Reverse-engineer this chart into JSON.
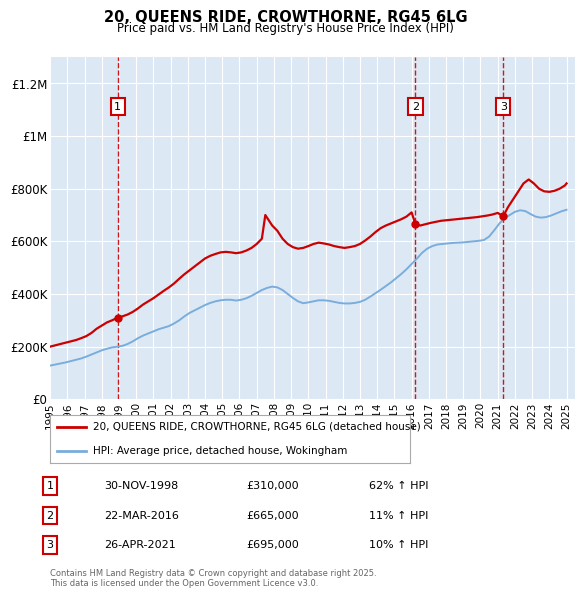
{
  "title_line1": "20, QUEENS RIDE, CROWTHORNE, RG45 6LG",
  "title_line2": "Price paid vs. HM Land Registry's House Price Index (HPI)",
  "plot_bg_color": "#dce9f5",
  "ylim": [
    0,
    1300000
  ],
  "yticks": [
    0,
    200000,
    400000,
    600000,
    800000,
    1000000,
    1200000
  ],
  "ytick_labels": [
    "£0",
    "£200K",
    "£400K",
    "£600K",
    "£800K",
    "£1M",
    "£1.2M"
  ],
  "xmin": 1995.0,
  "xmax": 2025.5,
  "sale_dates_num": [
    1998.92,
    2016.22,
    2021.32
  ],
  "sale_prices": [
    310000,
    665000,
    695000
  ],
  "sale_labels": [
    "1",
    "2",
    "3"
  ],
  "sale_label_dates": [
    "30-NOV-1998",
    "22-MAR-2016",
    "26-APR-2021"
  ],
  "sale_label_prices": [
    "£310,000",
    "£665,000",
    "£695,000"
  ],
  "sale_label_hpi": [
    "62% ↑ HPI",
    "11% ↑ HPI",
    "10% ↑ HPI"
  ],
  "red_line_color": "#cc0000",
  "blue_line_color": "#7aaddc",
  "hpi_x": [
    1995.0,
    1995.3,
    1995.6,
    1995.9,
    1996.2,
    1996.5,
    1996.8,
    1997.1,
    1997.4,
    1997.7,
    1998.0,
    1998.3,
    1998.6,
    1998.9,
    1999.2,
    1999.5,
    1999.8,
    2000.1,
    2000.4,
    2000.7,
    2001.0,
    2001.3,
    2001.6,
    2001.9,
    2002.2,
    2002.5,
    2002.8,
    2003.1,
    2003.4,
    2003.7,
    2004.0,
    2004.3,
    2004.6,
    2004.9,
    2005.2,
    2005.5,
    2005.8,
    2006.1,
    2006.4,
    2006.7,
    2007.0,
    2007.3,
    2007.6,
    2007.9,
    2008.2,
    2008.5,
    2008.8,
    2009.1,
    2009.4,
    2009.7,
    2010.0,
    2010.3,
    2010.6,
    2010.9,
    2011.2,
    2011.5,
    2011.8,
    2012.1,
    2012.4,
    2012.7,
    2013.0,
    2013.3,
    2013.6,
    2013.9,
    2014.2,
    2014.5,
    2014.8,
    2015.1,
    2015.4,
    2015.7,
    2016.0,
    2016.3,
    2016.6,
    2016.9,
    2017.2,
    2017.5,
    2017.8,
    2018.1,
    2018.4,
    2018.7,
    2019.0,
    2019.3,
    2019.6,
    2019.9,
    2020.2,
    2020.5,
    2020.8,
    2021.1,
    2021.4,
    2021.7,
    2022.0,
    2022.3,
    2022.6,
    2022.9,
    2023.2,
    2023.5,
    2023.8,
    2024.1,
    2024.4,
    2024.7,
    2025.0
  ],
  "hpi_y": [
    128000,
    132000,
    136000,
    140000,
    145000,
    150000,
    155000,
    162000,
    170000,
    178000,
    186000,
    192000,
    197000,
    200000,
    203000,
    210000,
    220000,
    232000,
    242000,
    250000,
    258000,
    266000,
    272000,
    278000,
    288000,
    300000,
    315000,
    328000,
    338000,
    348000,
    358000,
    366000,
    372000,
    376000,
    378000,
    378000,
    375000,
    378000,
    384000,
    393000,
    404000,
    415000,
    423000,
    428000,
    425000,
    415000,
    400000,
    385000,
    372000,
    365000,
    368000,
    372000,
    376000,
    376000,
    374000,
    370000,
    366000,
    364000,
    364000,
    366000,
    370000,
    378000,
    390000,
    403000,
    416000,
    430000,
    444000,
    460000,
    476000,
    494000,
    514000,
    534000,
    556000,
    572000,
    582000,
    588000,
    590000,
    592000,
    594000,
    595000,
    596000,
    598000,
    600000,
    602000,
    605000,
    618000,
    642000,
    668000,
    688000,
    700000,
    712000,
    718000,
    715000,
    704000,
    694000,
    690000,
    692000,
    698000,
    706000,
    714000,
    720000
  ],
  "price_x": [
    1995.0,
    1995.3,
    1995.6,
    1995.9,
    1996.2,
    1996.5,
    1996.8,
    1997.1,
    1997.4,
    1997.7,
    1998.0,
    1998.3,
    1998.6,
    1998.92,
    1999.2,
    1999.5,
    1999.8,
    2000.1,
    2000.4,
    2000.7,
    2001.0,
    2001.3,
    2001.6,
    2001.9,
    2002.2,
    2002.5,
    2002.8,
    2003.1,
    2003.4,
    2003.7,
    2004.0,
    2004.3,
    2004.6,
    2004.9,
    2005.2,
    2005.5,
    2005.8,
    2006.1,
    2006.4,
    2006.7,
    2007.0,
    2007.3,
    2007.5,
    2007.7,
    2007.9,
    2008.2,
    2008.5,
    2008.8,
    2009.1,
    2009.4,
    2009.7,
    2010.0,
    2010.3,
    2010.6,
    2010.9,
    2011.2,
    2011.5,
    2011.8,
    2012.1,
    2012.4,
    2012.7,
    2013.0,
    2013.3,
    2013.6,
    2013.9,
    2014.2,
    2014.5,
    2014.8,
    2015.1,
    2015.4,
    2015.7,
    2016.0,
    2016.22,
    2016.5,
    2016.8,
    2017.1,
    2017.4,
    2017.7,
    2018.0,
    2018.3,
    2018.6,
    2018.9,
    2019.2,
    2019.5,
    2019.8,
    2020.1,
    2020.4,
    2020.7,
    2021.0,
    2021.32,
    2021.6,
    2021.9,
    2022.2,
    2022.5,
    2022.8,
    2023.1,
    2023.4,
    2023.7,
    2024.0,
    2024.3,
    2024.6,
    2024.9,
    2025.0
  ],
  "price_y": [
    200000,
    205000,
    210000,
    215000,
    220000,
    225000,
    232000,
    240000,
    252000,
    268000,
    280000,
    292000,
    300000,
    310000,
    315000,
    322000,
    332000,
    345000,
    360000,
    372000,
    384000,
    398000,
    412000,
    425000,
    440000,
    458000,
    475000,
    490000,
    505000,
    520000,
    535000,
    545000,
    552000,
    558000,
    560000,
    558000,
    555000,
    558000,
    565000,
    575000,
    590000,
    610000,
    700000,
    680000,
    660000,
    640000,
    610000,
    590000,
    578000,
    572000,
    575000,
    582000,
    590000,
    595000,
    592000,
    588000,
    582000,
    578000,
    575000,
    578000,
    582000,
    590000,
    603000,
    618000,
    635000,
    650000,
    660000,
    668000,
    676000,
    684000,
    694000,
    710000,
    665000,
    660000,
    665000,
    670000,
    674000,
    678000,
    680000,
    682000,
    684000,
    686000,
    688000,
    690000,
    692000,
    695000,
    698000,
    702000,
    708000,
    695000,
    730000,
    760000,
    790000,
    820000,
    835000,
    820000,
    800000,
    790000,
    788000,
    792000,
    800000,
    812000,
    820000
  ],
  "legend_label_red": "20, QUEENS RIDE, CROWTHORNE, RG45 6LG (detached house)",
  "legend_label_blue": "HPI: Average price, detached house, Wokingham",
  "footer_text": "Contains HM Land Registry data © Crown copyright and database right 2025.\nThis data is licensed under the Open Government Licence v3.0.",
  "dashed_line_color": "#cc0000",
  "grid_color": "#ffffff",
  "xtick_years": [
    1995,
    1996,
    1997,
    1998,
    1999,
    2000,
    2001,
    2002,
    2003,
    2004,
    2005,
    2006,
    2007,
    2008,
    2009,
    2010,
    2011,
    2012,
    2013,
    2014,
    2015,
    2016,
    2017,
    2018,
    2019,
    2020,
    2021,
    2022,
    2023,
    2024,
    2025
  ]
}
